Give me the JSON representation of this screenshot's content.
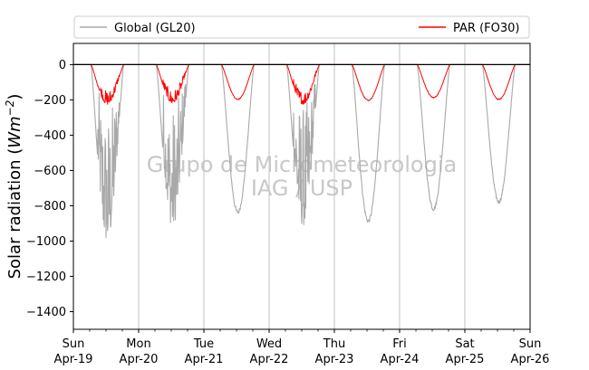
{
  "chart_data": {
    "type": "line",
    "title": "",
    "ylabel": "Solar radiation (Wm−2)",
    "ylabel_prefix": "Solar radiation (",
    "ylabel_unit_italic": "Wm",
    "ylabel_unit_sup": "−2",
    "ylabel_suffix": ")",
    "xlabel": "",
    "ylim": [
      -1500,
      120
    ],
    "xlim_days": [
      0,
      7
    ],
    "yticks": [
      0,
      -200,
      -400,
      -600,
      -800,
      -1000,
      -1200,
      -1400
    ],
    "ytick_labels": [
      "0",
      "−200",
      "−400",
      "−600",
      "−800",
      "−1000",
      "−1200",
      "−1400"
    ],
    "xticks": [
      {
        "day": "Sun",
        "date": "Apr-19"
      },
      {
        "day": "Mon",
        "date": "Apr-20"
      },
      {
        "day": "Tue",
        "date": "Apr-21"
      },
      {
        "day": "Wed",
        "date": "Apr-22"
      },
      {
        "day": "Thu",
        "date": "Apr-23"
      },
      {
        "day": "Fri",
        "date": "Apr-24"
      },
      {
        "day": "Sat",
        "date": "Apr-25"
      },
      {
        "day": "Sun",
        "date": "Apr-26"
      }
    ],
    "grid": "vertical at day boundaries",
    "legend_placement": "top, above plot",
    "watermark": [
      "Grupo de Micrometeorologia",
      "IAG / USP"
    ],
    "series": [
      {
        "name": "Global (GL20)",
        "color": "#a9a9a9",
        "daily_min": [
          -1000,
          -920,
          -850,
          -910,
          -900,
          -830,
          -790
        ],
        "noisy": [
          true,
          true,
          false,
          true,
          false,
          false,
          false
        ]
      },
      {
        "name": "PAR (FO30)",
        "color": "#ff0000",
        "daily_min": [
          -225,
          -220,
          -200,
          -225,
          -205,
          -190,
          -200
        ],
        "noisy": [
          true,
          true,
          false,
          true,
          false,
          false,
          false
        ]
      }
    ]
  }
}
